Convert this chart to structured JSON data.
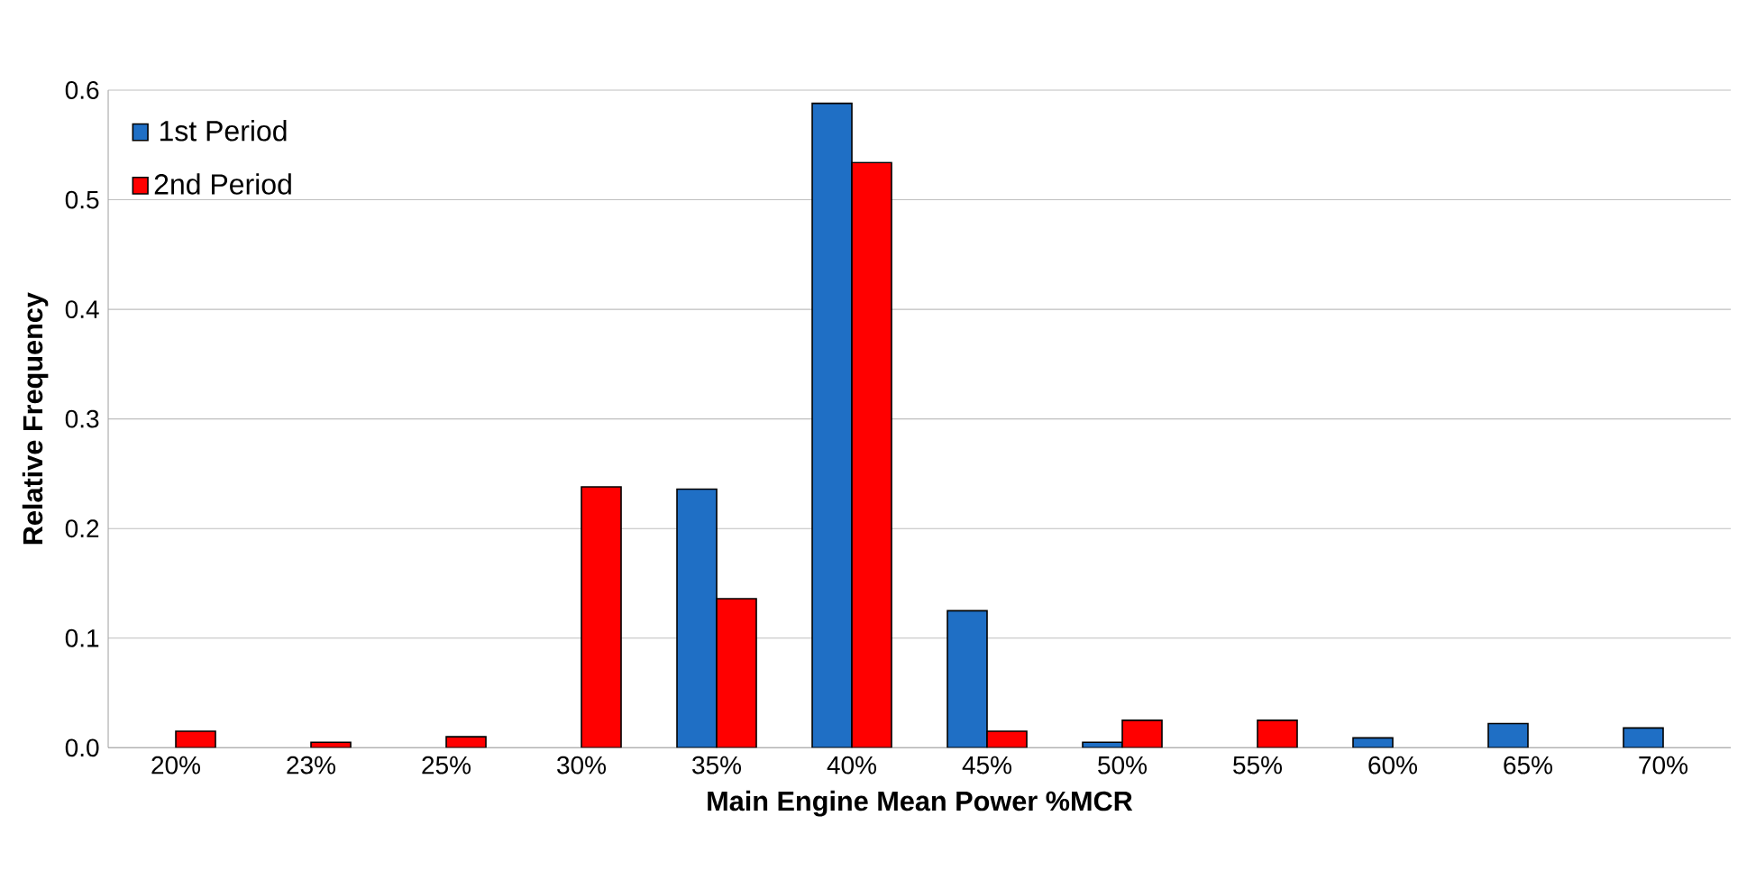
{
  "chart_data": {
    "type": "bar",
    "xlabel": "Main Engine Mean Power %MCR",
    "ylabel": "Relative Frequency",
    "categories": [
      "20%",
      "23%",
      "25%",
      "30%",
      "35%",
      "40%",
      "45%",
      "50%",
      "55%",
      "60%",
      "65%",
      "70%"
    ],
    "series": [
      {
        "name": "1st Period",
        "color": "#1f6fc5",
        "values": [
          null,
          null,
          null,
          null,
          0.236,
          0.588,
          0.125,
          0.005,
          null,
          0.009,
          0.022,
          0.018
        ]
      },
      {
        "name": "2nd Period",
        "color": "#ff0000",
        "values": [
          0.015,
          0.005,
          0.01,
          0.238,
          0.136,
          0.534,
          0.015,
          0.025,
          0.025,
          null,
          null,
          null
        ]
      }
    ],
    "ylim": [
      0,
      0.6
    ],
    "yticks": [
      {
        "value": 0,
        "label": "0.0"
      },
      0.1,
      0.2,
      0.3,
      0.4,
      0.5,
      0.6
    ],
    "grid": "y",
    "legend": "top left"
  }
}
